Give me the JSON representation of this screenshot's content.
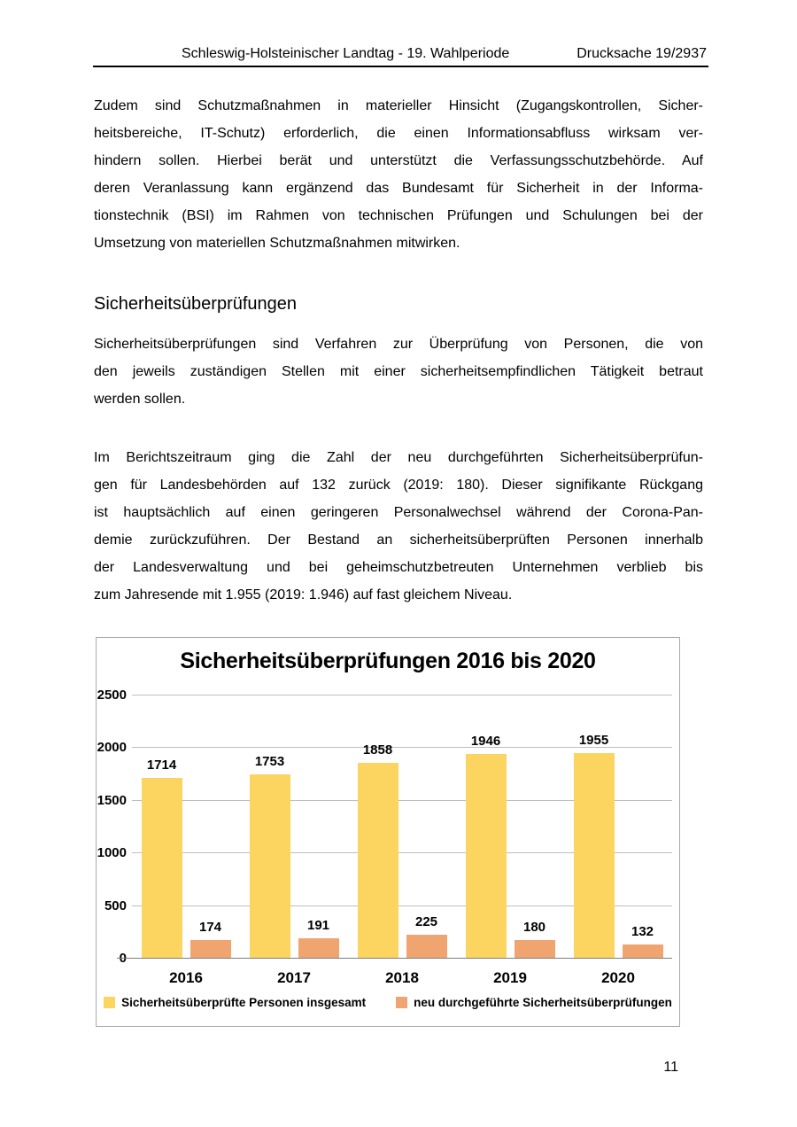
{
  "header": {
    "left": "Schleswig-Holsteinischer Landtag - 19. Wahlperiode",
    "right": "Drucksache 19/2937"
  },
  "body": {
    "paragraph1_lines": [
      "Zudem sind Schutzmaßnahmen in materieller Hinsicht (Zugangskontrollen, Sicher-",
      "heitsbereiche, IT-Schutz) erforderlich, die einen Informationsabfluss wirksam ver-",
      "hindern sollen. Hierbei berät und unterstützt die Verfassungsschutzbehörde. Auf",
      "deren Veranlassung kann ergänzend das Bundesamt für Sicherheit in der Informa-",
      "tionstechnik (BSI) im Rahmen von technischen Prüfungen und Schulungen bei der",
      "Umsetzung von materiellen Schutzmaßnahmen mitwirken."
    ],
    "section_heading": "Sicherheitsüberprüfungen",
    "paragraph2_lines": [
      "Sicherheitsüberprüfungen sind Verfahren zur Überprüfung von Personen, die von",
      "den jeweils zuständigen Stellen mit einer sicherheitsempfindlichen Tätigkeit betraut",
      "werden sollen."
    ],
    "paragraph3_lines": [
      "Im Berichtszeitraum ging die Zahl der neu durchgeführten Sicherheitsüberprüfun-",
      "gen für Landesbehörden auf 132 zurück (2019: 180). Dieser signifikante Rückgang",
      "ist hauptsächlich auf einen geringeren Personalwechsel während der Corona-Pan-",
      "demie zurückzuführen. Der Bestand an sicherheitsüberprüften Personen innerhalb",
      "der Landesverwaltung und bei geheimschutzbetreuten Unternehmen verblieb bis",
      "zum Jahresende mit 1.955 (2019: 1.946) auf fast gleichem Niveau."
    ]
  },
  "chart_data": {
    "type": "bar",
    "title": "Sicherheitsüberprüfungen 2016 bis 2020",
    "categories": [
      "2016",
      "2017",
      "2018",
      "2019",
      "2020"
    ],
    "series": [
      {
        "name": "Sicherheitsüberprüfte Personen insgesamt",
        "color": "#FCD460",
        "values": [
          1714,
          1753,
          1858,
          1946,
          1955
        ]
      },
      {
        "name": "neu durchgeführte Sicherheitsüberprüfungen",
        "color": "#F0A571",
        "values": [
          174,
          191,
          225,
          180,
          132
        ]
      }
    ],
    "xlabel": "",
    "ylabel": "",
    "ylim": [
      0,
      2500
    ],
    "yticks": [
      0,
      500,
      1000,
      1500,
      2000,
      2500
    ],
    "grid": true,
    "data_labels": true,
    "legend_position": "bottom",
    "colors": {
      "gridline": "#bfbfbf",
      "axis": "#7f7f7f",
      "frame": "#a9a9a9"
    }
  },
  "footer": {
    "page_number": "11"
  }
}
